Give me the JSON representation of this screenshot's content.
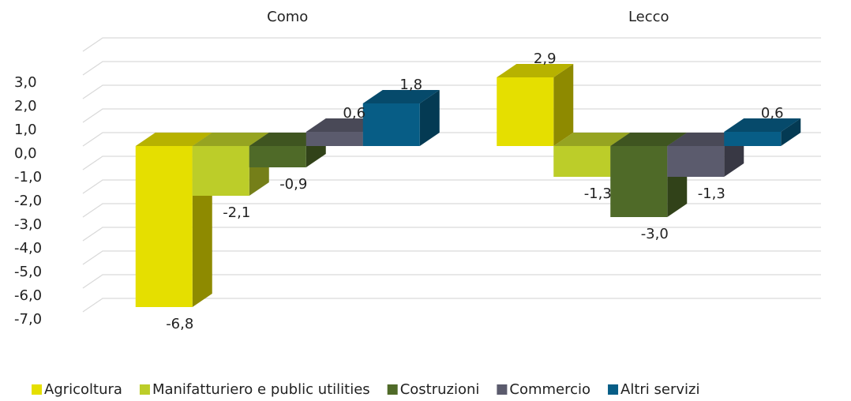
{
  "chart_data": {
    "type": "bar3d",
    "categories": [
      "Como",
      "Lecco"
    ],
    "series": [
      {
        "name": "Agricoltura",
        "color": "#e5df00",
        "values": [
          -6.8,
          2.9
        ],
        "value_labels": [
          "-6,8",
          "2,9"
        ]
      },
      {
        "name": "Manifatturiero e public utilities",
        "color": "#bccd29",
        "values": [
          -2.1,
          -1.3
        ],
        "value_labels": [
          "-2,1",
          "-1,3"
        ]
      },
      {
        "name": "Costruzioni",
        "color": "#4f6a28",
        "values": [
          -0.9,
          -3.0
        ],
        "value_labels": [
          "-0,9",
          "-3,0"
        ]
      },
      {
        "name": "Commercio",
        "color": "#5b5b6d",
        "values": [
          0.6,
          -1.3
        ],
        "value_labels": [
          "0,6",
          "-1,3"
        ]
      },
      {
        "name": "Altri servizi",
        "color": "#075d86",
        "values": [
          1.8,
          0.6
        ],
        "value_labels": [
          "1,8",
          "0,6"
        ]
      }
    ],
    "ylim": [
      -7,
      4
    ],
    "yticks": [
      {
        "value": -7,
        "label": "-7,0"
      },
      {
        "value": -6,
        "label": "-6,0"
      },
      {
        "value": -5,
        "label": "-5,0"
      },
      {
        "value": -4,
        "label": "-4,0"
      },
      {
        "value": -3,
        "label": "-3,0"
      },
      {
        "value": -2,
        "label": "-2,0"
      },
      {
        "value": -1,
        "label": "-1,0"
      },
      {
        "value": 0,
        "label": "0,0"
      },
      {
        "value": 1,
        "label": "1,0"
      },
      {
        "value": 2,
        "label": "2,0"
      },
      {
        "value": 3,
        "label": "3,0"
      }
    ],
    "grid": true,
    "legend": "bottom"
  }
}
